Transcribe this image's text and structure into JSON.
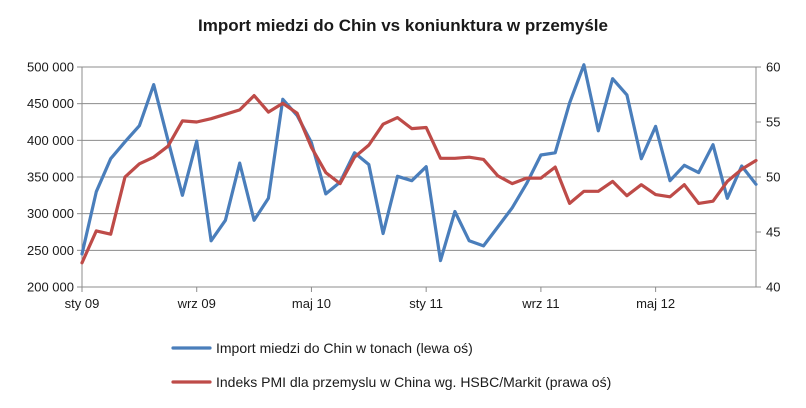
{
  "chart_data": {
    "type": "line",
    "title": "Import miedzi do Chin vs koniunktura w przemyśle",
    "x_tick_labels": [
      "sty 09",
      "wrz 09",
      "maj 10",
      "sty 11",
      "wrz 11",
      "maj 12"
    ],
    "x_tick_indices": [
      0,
      8,
      16,
      24,
      32,
      40
    ],
    "months": 48,
    "y_left": {
      "min": 200000,
      "max": 500000,
      "step": 50000,
      "tick_labels": [
        "200 000",
        "250 000",
        "300 000",
        "350 000",
        "400 000",
        "450 000",
        "500 000"
      ]
    },
    "y_right": {
      "min": 40,
      "max": 60,
      "step": 5,
      "tick_labels": [
        "40",
        "45",
        "50",
        "55",
        "60"
      ]
    },
    "legend_position": "bottom",
    "series": [
      {
        "name": "Import miedzi do Chin w tonach (lewa oś)",
        "axis": "left",
        "color": "#4a7ebb",
        "values": [
          245000,
          330000,
          375000,
          398000,
          420000,
          476000,
          400000,
          325000,
          399000,
          263000,
          291000,
          369000,
          291000,
          321000,
          456000,
          434000,
          397000,
          327000,
          343000,
          383000,
          367000,
          273000,
          351000,
          345000,
          364000,
          236000,
          303000,
          263000,
          256000,
          282000,
          308000,
          341000,
          380000,
          383000,
          451000,
          503000,
          413000,
          484000,
          462000,
          375000,
          419000,
          345000,
          366000,
          356000,
          394000,
          321000,
          365000,
          340000
        ]
      },
      {
        "name": "Indeks PMI dla przemyslu w China wg. HSBC/Markit (prawa oś)",
        "axis": "right",
        "color": "#be4b48",
        "values": [
          42.2,
          45.1,
          44.8,
          50.0,
          51.2,
          51.8,
          52.8,
          55.1,
          55.0,
          55.3,
          55.7,
          56.1,
          57.4,
          55.9,
          56.7,
          55.8,
          52.7,
          50.4,
          49.4,
          51.8,
          52.9,
          54.8,
          55.4,
          54.4,
          54.5,
          51.7,
          51.7,
          51.8,
          51.6,
          50.1,
          49.4,
          49.9,
          49.9,
          50.9,
          47.6,
          48.7,
          48.7,
          49.6,
          48.3,
          49.3,
          48.4,
          48.2,
          49.3,
          47.6,
          47.8,
          49.6,
          50.7,
          51.5
        ]
      }
    ]
  }
}
